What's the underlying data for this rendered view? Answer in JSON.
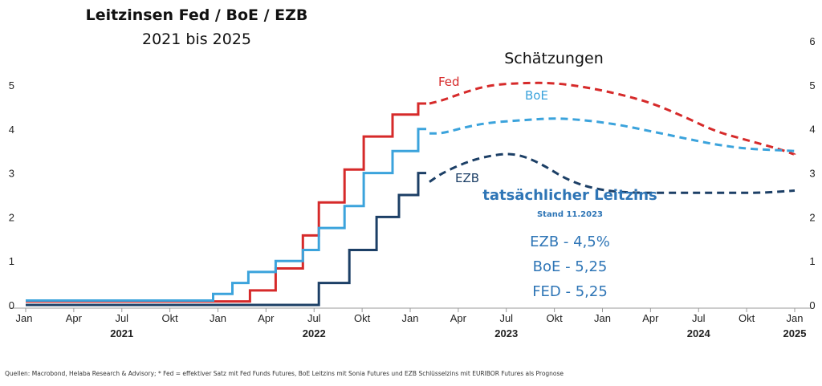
{
  "header": {
    "title": "Leitzinsen Fed / BoE / EZB",
    "subtitle": "2021 bis 2025"
  },
  "forecast_label": "Schätzungen",
  "actual_box": {
    "heading": "tatsächlicher Leitzins",
    "date": "Stand 11.2023",
    "lines": [
      "EZB - 4,5%",
      "BoE - 5,25",
      "FED - 5,25"
    ]
  },
  "source": "Quellen: Macrobond, Helaba Research & Advisory; * Fed = effektiver Satz mit Fed Funds Futures, BoE Leitzins mit Sonia Futures und EZB Schlüsselzins mit EURIBOR Futures als Prognose",
  "colors": {
    "fed": "#d62a2a",
    "boe": "#3ba3dc",
    "ezb": "#1c3f66",
    "axis": "#9a9a9a"
  },
  "chart_data": {
    "type": "line",
    "xlabel": "",
    "ylabel": "",
    "xlim": [
      0,
      48
    ],
    "ylim_left": [
      0,
      5
    ],
    "ylim_right": [
      0,
      6
    ],
    "x_ticks": [
      {
        "x": 0,
        "label": "Jan"
      },
      {
        "x": 3,
        "label": "Apr"
      },
      {
        "x": 6,
        "label": "Jul"
      },
      {
        "x": 9,
        "label": "Okt"
      },
      {
        "x": 12,
        "label": "Jan"
      },
      {
        "x": 15,
        "label": "Apr"
      },
      {
        "x": 18,
        "label": "Jul"
      },
      {
        "x": 21,
        "label": "Okt"
      },
      {
        "x": 24,
        "label": "Jan"
      },
      {
        "x": 27,
        "label": "Apr"
      },
      {
        "x": 30,
        "label": "Jul"
      },
      {
        "x": 33,
        "label": "Okt"
      },
      {
        "x": 36,
        "label": "Jan"
      },
      {
        "x": 39,
        "label": "Apr"
      },
      {
        "x": 42,
        "label": "Jul"
      },
      {
        "x": 45,
        "label": "Okt"
      },
      {
        "x": 48,
        "label": "Jan"
      }
    ],
    "year_labels": [
      {
        "x": 6,
        "label": "2021"
      },
      {
        "x": 18,
        "label": "2022"
      },
      {
        "x": 30,
        "label": "2023"
      },
      {
        "x": 42,
        "label": "2024"
      },
      {
        "x": 48,
        "label": "2025"
      }
    ],
    "left_ticks": [
      0,
      1,
      2,
      3,
      4,
      5
    ],
    "right_ticks": [
      0,
      1,
      2,
      3,
      4,
      5,
      6
    ],
    "series": [
      {
        "name": "Fed",
        "actual_step": [
          [
            0,
            0.08
          ],
          [
            14,
            0.08
          ],
          [
            14,
            0.33
          ],
          [
            15.6,
            0.33
          ],
          [
            15.6,
            0.83
          ],
          [
            17.3,
            0.83
          ],
          [
            17.3,
            1.58
          ],
          [
            18.3,
            1.58
          ],
          [
            18.3,
            2.33
          ],
          [
            19.9,
            2.33
          ],
          [
            19.9,
            3.08
          ],
          [
            21.1,
            3.08
          ],
          [
            21.1,
            3.83
          ],
          [
            22.9,
            3.83
          ],
          [
            22.9,
            4.33
          ],
          [
            24.5,
            4.33
          ],
          [
            24.5,
            4.58
          ],
          [
            25,
            4.58
          ]
        ],
        "forecast": [
          [
            25.2,
            4.58
          ],
          [
            26,
            4.65
          ],
          [
            27.5,
            4.85
          ],
          [
            29,
            5.0
          ],
          [
            31,
            5.05
          ],
          [
            33,
            5.05
          ],
          [
            35,
            4.95
          ],
          [
            37,
            4.8
          ],
          [
            39,
            4.6
          ],
          [
            41,
            4.3
          ],
          [
            43,
            3.95
          ],
          [
            45,
            3.75
          ],
          [
            47,
            3.55
          ],
          [
            48,
            3.42
          ]
        ]
      },
      {
        "name": "BoE",
        "actual_step": [
          [
            0,
            0.1
          ],
          [
            11.7,
            0.1
          ],
          [
            11.7,
            0.25
          ],
          [
            12.9,
            0.25
          ],
          [
            12.9,
            0.5
          ],
          [
            13.9,
            0.5
          ],
          [
            13.9,
            0.75
          ],
          [
            15.6,
            0.75
          ],
          [
            15.6,
            1.0
          ],
          [
            17.3,
            1.0
          ],
          [
            17.3,
            1.25
          ],
          [
            18.3,
            1.25
          ],
          [
            18.3,
            1.75
          ],
          [
            19.9,
            1.75
          ],
          [
            19.9,
            2.25
          ],
          [
            21.1,
            2.25
          ],
          [
            21.1,
            3.0
          ],
          [
            22.9,
            3.0
          ],
          [
            22.9,
            3.5
          ],
          [
            24.5,
            3.5
          ],
          [
            24.5,
            4.0
          ],
          [
            25,
            4.0
          ]
        ],
        "forecast": [
          [
            25.2,
            3.9
          ],
          [
            26,
            3.9
          ],
          [
            27.5,
            4.05
          ],
          [
            29,
            4.15
          ],
          [
            31,
            4.2
          ],
          [
            33,
            4.25
          ],
          [
            35,
            4.2
          ],
          [
            37,
            4.1
          ],
          [
            39,
            3.95
          ],
          [
            41,
            3.8
          ],
          [
            43,
            3.65
          ],
          [
            45,
            3.55
          ],
          [
            48,
            3.5
          ]
        ]
      },
      {
        "name": "EZB",
        "actual_step": [
          [
            0,
            0.0
          ],
          [
            18.3,
            0.0
          ],
          [
            18.3,
            0.5
          ],
          [
            20.2,
            0.5
          ],
          [
            20.2,
            1.25
          ],
          [
            21.9,
            1.25
          ],
          [
            21.9,
            2.0
          ],
          [
            23.3,
            2.0
          ],
          [
            23.3,
            2.5
          ],
          [
            24.5,
            2.5
          ],
          [
            24.5,
            3.0
          ],
          [
            25,
            3.0
          ]
        ],
        "forecast": [
          [
            25.2,
            2.8
          ],
          [
            26,
            3.0
          ],
          [
            27.5,
            3.25
          ],
          [
            29,
            3.4
          ],
          [
            30.5,
            3.45
          ],
          [
            32,
            3.25
          ],
          [
            34,
            2.8
          ],
          [
            36,
            2.6
          ],
          [
            38,
            2.55
          ],
          [
            40,
            2.55
          ],
          [
            42,
            2.55
          ],
          [
            44,
            2.55
          ],
          [
            46,
            2.55
          ],
          [
            48,
            2.6
          ]
        ]
      }
    ]
  }
}
